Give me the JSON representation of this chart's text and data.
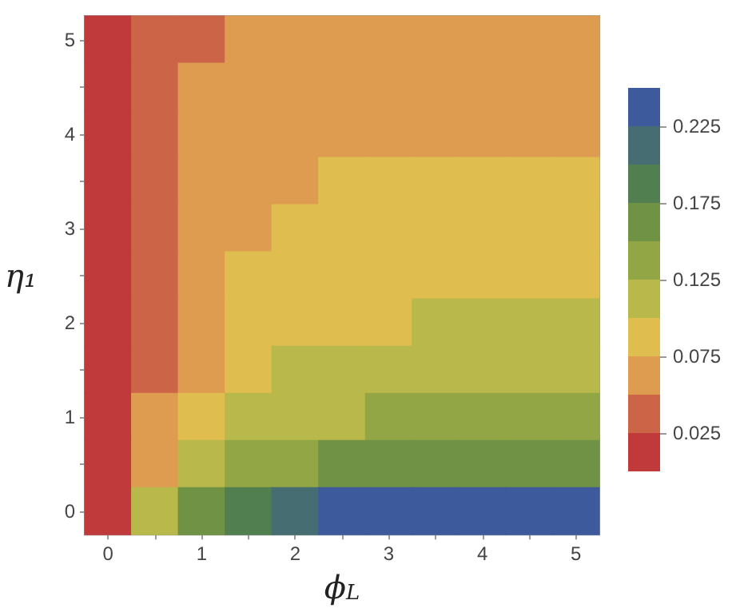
{
  "chart_data": {
    "type": "heatmap",
    "xlabel": "ϕ$_{L}$",
    "ylabel": "η₁",
    "categories": [
      "0",
      null,
      "1",
      null,
      "2",
      null,
      "3",
      null,
      "4",
      null,
      "5"
    ],
    "y_categories": [
      "5",
      null,
      "4",
      null,
      "3",
      null,
      "2",
      null,
      "1",
      null,
      "0"
    ],
    "cells": [
      [
        0.0125,
        0.0375,
        0.0375,
        0.0625,
        0.0625,
        0.0625,
        0.0625,
        0.0625,
        0.0625,
        0.0625,
        0.0625
      ],
      [
        0.0125,
        0.0375,
        0.0625,
        0.0625,
        0.0625,
        0.0625,
        0.0625,
        0.0625,
        0.0625,
        0.0625,
        0.0625
      ],
      [
        0.0125,
        0.0375,
        0.0625,
        0.0625,
        0.0625,
        0.0625,
        0.0625,
        0.0625,
        0.0625,
        0.0625,
        0.0625
      ],
      [
        0.0125,
        0.0375,
        0.0625,
        0.0625,
        0.0625,
        0.0875,
        0.0875,
        0.0875,
        0.0875,
        0.0875,
        0.0875
      ],
      [
        0.0125,
        0.0375,
        0.0625,
        0.0625,
        0.0875,
        0.0875,
        0.0875,
        0.0875,
        0.0875,
        0.0875,
        0.0875
      ],
      [
        0.0125,
        0.0375,
        0.0625,
        0.0875,
        0.0875,
        0.0875,
        0.0875,
        0.0875,
        0.0875,
        0.0875,
        0.0875
      ],
      [
        0.0125,
        0.0375,
        0.0625,
        0.0875,
        0.0875,
        0.0875,
        0.0875,
        0.1125,
        0.1125,
        0.1125,
        0.1125
      ],
      [
        0.0125,
        0.0375,
        0.0625,
        0.0875,
        0.1125,
        0.1125,
        0.1125,
        0.1125,
        0.1125,
        0.1125,
        0.1125
      ],
      [
        0.0125,
        0.0625,
        0.0875,
        0.1125,
        0.1125,
        0.1125,
        0.1375,
        0.1375,
        0.1375,
        0.1375,
        0.1375
      ],
      [
        0.0125,
        0.0625,
        0.1125,
        0.1375,
        0.1375,
        0.1625,
        0.1625,
        0.1625,
        0.1625,
        0.1625,
        0.1625
      ],
      [
        0.0125,
        0.1125,
        0.1625,
        0.1875,
        0.2125,
        0.2375,
        0.2375,
        0.2375,
        0.2375,
        0.2375,
        0.2375
      ]
    ],
    "clim": [
      0,
      0.25
    ],
    "cticks": [
      0.025,
      0.075,
      0.125,
      0.175,
      0.225
    ],
    "colors": [
      "#c0393b",
      "#cc6448",
      "#dd9c50",
      "#dfbd4f",
      "#b9b84a",
      "#93a645",
      "#6f9244",
      "#527f4f",
      "#456d72",
      "#3c5a9c"
    ]
  }
}
